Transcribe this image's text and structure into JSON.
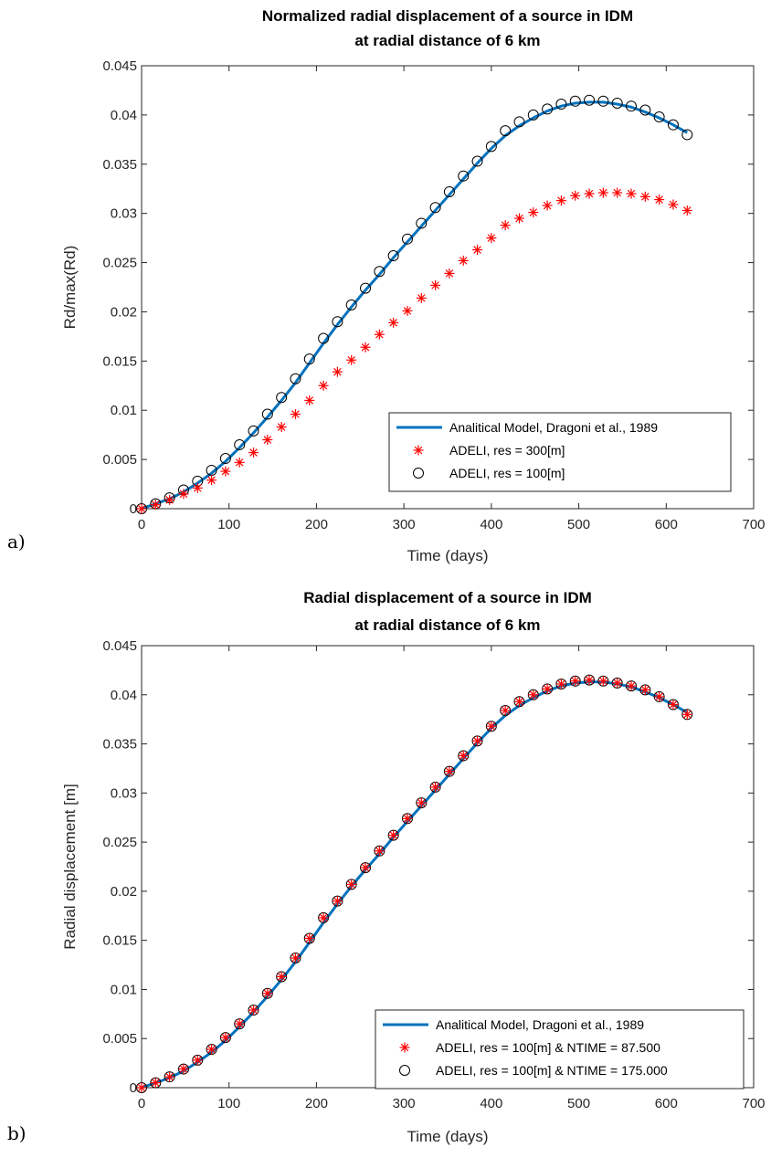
{
  "chart_data": [
    {
      "panel_label": "a)",
      "type": "line",
      "title": [
        "Normalized radial displacement of a source in IDM",
        "at radial distance of 6 km"
      ],
      "xlabel": "Time (days)",
      "ylabel": "Rd/max(Rd)",
      "xlim": [
        0,
        700
      ],
      "ylim": [
        0,
        0.045
      ],
      "xticks": [
        0,
        100,
        200,
        300,
        400,
        500,
        600,
        700
      ],
      "xtick_labels": [
        "0",
        "100",
        "200",
        "300",
        "400",
        "500",
        "600",
        "700"
      ],
      "yticks": [
        0,
        0.005,
        0.01,
        0.015,
        0.02,
        0.025,
        0.03,
        0.035,
        0.04,
        0.045
      ],
      "ytick_labels": [
        "0",
        "0.005",
        "0.01",
        "0.015",
        "0.02",
        "0.025",
        "0.03",
        "0.035",
        "0.04",
        "0.045"
      ],
      "grid": false,
      "legend_position": "bottom-right",
      "series": [
        {
          "name": "Analitical Model, Dragoni et al., 1989",
          "style": "line",
          "color": "#0072bd",
          "x": [
            0,
            16,
            32,
            48,
            64,
            80,
            96,
            112,
            128,
            144,
            160,
            176,
            192,
            208,
            224,
            240,
            256,
            272,
            288,
            304,
            320,
            336,
            352,
            368,
            384,
            400,
            416,
            432,
            448,
            464,
            480,
            496,
            512,
            528,
            544,
            560,
            576,
            592,
            608,
            624
          ],
          "y": [
            0,
            0.0005,
            0.001,
            0.0017,
            0.0026,
            0.0036,
            0.0048,
            0.0062,
            0.0077,
            0.0093,
            0.011,
            0.0128,
            0.0148,
            0.0168,
            0.0187,
            0.0205,
            0.0222,
            0.0238,
            0.0255,
            0.0271,
            0.0287,
            0.0303,
            0.0319,
            0.0335,
            0.0351,
            0.0366,
            0.0379,
            0.0389,
            0.0397,
            0.0404,
            0.0409,
            0.0412,
            0.0413,
            0.0413,
            0.0411,
            0.0408,
            0.0403,
            0.0397,
            0.039,
            0.0382
          ]
        },
        {
          "name": "ADELI, res = 300[m]",
          "style": "star",
          "color": "#ff0000",
          "x": [
            0,
            16,
            32,
            48,
            64,
            80,
            96,
            112,
            128,
            144,
            160,
            176,
            192,
            208,
            224,
            240,
            256,
            272,
            288,
            304,
            320,
            336,
            352,
            368,
            384,
            400,
            416,
            432,
            448,
            464,
            480,
            496,
            512,
            528,
            544,
            560,
            576,
            592,
            608,
            624
          ],
          "y": [
            0,
            0.0004,
            0.0009,
            0.0015,
            0.0021,
            0.0029,
            0.0038,
            0.0047,
            0.0057,
            0.007,
            0.0083,
            0.0096,
            0.011,
            0.0125,
            0.0139,
            0.0151,
            0.0164,
            0.0177,
            0.0189,
            0.0201,
            0.0214,
            0.0227,
            0.0239,
            0.0252,
            0.0263,
            0.0275,
            0.0288,
            0.0295,
            0.0301,
            0.0308,
            0.0313,
            0.0318,
            0.032,
            0.0321,
            0.0321,
            0.032,
            0.0317,
            0.0314,
            0.0309,
            0.0303
          ]
        },
        {
          "name": "ADELI, res = 100[m]",
          "style": "circle",
          "color": "#000000",
          "x": [
            0,
            16,
            32,
            48,
            64,
            80,
            96,
            112,
            128,
            144,
            160,
            176,
            192,
            208,
            224,
            240,
            256,
            272,
            288,
            304,
            320,
            336,
            352,
            368,
            384,
            400,
            416,
            432,
            448,
            464,
            480,
            496,
            512,
            528,
            544,
            560,
            576,
            592,
            608,
            624
          ],
          "y": [
            0,
            0.0005,
            0.0011,
            0.0019,
            0.0028,
            0.0039,
            0.0051,
            0.0065,
            0.0079,
            0.0096,
            0.0113,
            0.0132,
            0.0152,
            0.0173,
            0.019,
            0.0207,
            0.0224,
            0.0241,
            0.0257,
            0.0274,
            0.029,
            0.0306,
            0.0322,
            0.0338,
            0.0353,
            0.0368,
            0.0384,
            0.0393,
            0.04,
            0.0406,
            0.0411,
            0.0414,
            0.0415,
            0.0414,
            0.0412,
            0.0409,
            0.0405,
            0.0398,
            0.039,
            0.038
          ]
        }
      ]
    },
    {
      "panel_label": "b)",
      "type": "line",
      "title": [
        "Radial displacement of a source in IDM",
        "at radial distance of 6 km"
      ],
      "xlabel": "Time (days)",
      "ylabel": "Radial displacement [m]",
      "xlim": [
        0,
        700
      ],
      "ylim": [
        0,
        0.045
      ],
      "xticks": [
        0,
        100,
        200,
        300,
        400,
        500,
        600,
        700
      ],
      "xtick_labels": [
        "0",
        "100",
        "200",
        "300",
        "400",
        "500",
        "600",
        "700"
      ],
      "yticks": [
        0,
        0.005,
        0.01,
        0.015,
        0.02,
        0.025,
        0.03,
        0.035,
        0.04,
        0.045
      ],
      "ytick_labels": [
        "0",
        "0.005",
        "0.01",
        "0.015",
        "0.02",
        "0.025",
        "0.03",
        "0.035",
        "0.04",
        "0.045"
      ],
      "grid": false,
      "legend_position": "bottom-right",
      "series": [
        {
          "name": "Analitical Model, Dragoni et al., 1989",
          "style": "line",
          "color": "#0072bd",
          "x": [
            0,
            16,
            32,
            48,
            64,
            80,
            96,
            112,
            128,
            144,
            160,
            176,
            192,
            208,
            224,
            240,
            256,
            272,
            288,
            304,
            320,
            336,
            352,
            368,
            384,
            400,
            416,
            432,
            448,
            464,
            480,
            496,
            512,
            528,
            544,
            560,
            576,
            592,
            608,
            624
          ],
          "y": [
            0,
            0.0005,
            0.001,
            0.0017,
            0.0026,
            0.0036,
            0.0048,
            0.0062,
            0.0077,
            0.0093,
            0.011,
            0.0128,
            0.0148,
            0.0168,
            0.0187,
            0.0205,
            0.0222,
            0.0238,
            0.0255,
            0.0271,
            0.0287,
            0.0303,
            0.0319,
            0.0335,
            0.0351,
            0.0366,
            0.0379,
            0.0389,
            0.0397,
            0.0404,
            0.0409,
            0.0412,
            0.0413,
            0.0413,
            0.0411,
            0.0408,
            0.0403,
            0.0397,
            0.039,
            0.0382
          ]
        },
        {
          "name": "ADELI, res = 100[m] & NTIME = 87.500",
          "style": "star",
          "color": "#ff0000",
          "x": [
            0,
            16,
            32,
            48,
            64,
            80,
            96,
            112,
            128,
            144,
            160,
            176,
            192,
            208,
            224,
            240,
            256,
            272,
            288,
            304,
            320,
            336,
            352,
            368,
            384,
            400,
            416,
            432,
            448,
            464,
            480,
            496,
            512,
            528,
            544,
            560,
            576,
            592,
            608,
            624
          ],
          "y": [
            0,
            0.0005,
            0.0011,
            0.0019,
            0.0028,
            0.0039,
            0.0051,
            0.0065,
            0.0079,
            0.0096,
            0.0113,
            0.0132,
            0.0152,
            0.0173,
            0.019,
            0.0207,
            0.0224,
            0.0241,
            0.0257,
            0.0274,
            0.029,
            0.0306,
            0.0322,
            0.0338,
            0.0353,
            0.0368,
            0.0384,
            0.0393,
            0.04,
            0.0406,
            0.0411,
            0.0414,
            0.0415,
            0.0414,
            0.0412,
            0.0409,
            0.0405,
            0.0398,
            0.039,
            0.038
          ]
        },
        {
          "name": "ADELI, res = 100[m] & NTIME = 175.000",
          "style": "circle",
          "color": "#000000",
          "x": [
            0,
            16,
            32,
            48,
            64,
            80,
            96,
            112,
            128,
            144,
            160,
            176,
            192,
            208,
            224,
            240,
            256,
            272,
            288,
            304,
            320,
            336,
            352,
            368,
            384,
            400,
            416,
            432,
            448,
            464,
            480,
            496,
            512,
            528,
            544,
            560,
            576,
            592,
            608,
            624
          ],
          "y": [
            0,
            0.0005,
            0.0011,
            0.0019,
            0.0028,
            0.0039,
            0.0051,
            0.0065,
            0.0079,
            0.0096,
            0.0113,
            0.0132,
            0.0152,
            0.0173,
            0.019,
            0.0207,
            0.0224,
            0.0241,
            0.0257,
            0.0274,
            0.029,
            0.0306,
            0.0322,
            0.0338,
            0.0353,
            0.0368,
            0.0384,
            0.0393,
            0.04,
            0.0406,
            0.0411,
            0.0414,
            0.0415,
            0.0414,
            0.0412,
            0.0409,
            0.0405,
            0.0398,
            0.039,
            0.038
          ]
        }
      ]
    }
  ]
}
